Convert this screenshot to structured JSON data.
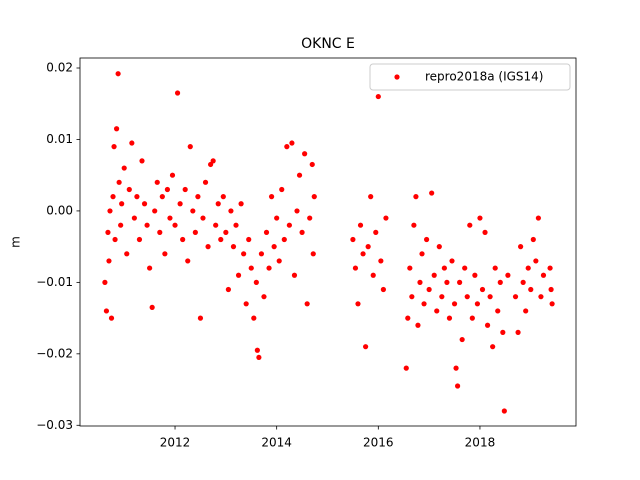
{
  "chart_data": {
    "type": "scatter",
    "title": "OKNC E",
    "ylabel": "m",
    "xlim": [
      2010.13,
      2019.89
    ],
    "xticks": [
      2012,
      2014,
      2016,
      2018
    ],
    "ylim": [
      -0.0301,
      0.0214
    ],
    "yticks": [
      {
        "value": -0.03,
        "label": "−0.03"
      },
      {
        "value": -0.02,
        "label": "−0.02"
      },
      {
        "value": -0.01,
        "label": "−0.01"
      },
      {
        "value": 0,
        "label": "0.00"
      },
      0.01,
      0.02
    ],
    "legend": "upper right",
    "series": [
      {
        "name": "repro2018a (IGS14)",
        "color": "#ff0000",
        "x": [
          2010.62,
          2010.65,
          2010.68,
          2010.7,
          2010.72,
          2010.75,
          2010.78,
          2010.8,
          2010.82,
          2010.85,
          2010.88,
          2010.9,
          2010.93,
          2010.95,
          2011,
          2011.05,
          2011.1,
          2011.15,
          2011.2,
          2011.25,
          2011.3,
          2011.35,
          2011.4,
          2011.45,
          2011.5,
          2011.55,
          2011.6,
          2011.65,
          2011.7,
          2011.75,
          2011.8,
          2011.85,
          2011.9,
          2011.95,
          2012,
          2012.05,
          2012.1,
          2012.15,
          2012.2,
          2012.25,
          2012.3,
          2012.35,
          2012.4,
          2012.45,
          2012.5,
          2012.55,
          2012.6,
          2012.65,
          2012.7,
          2012.75,
          2012.8,
          2012.85,
          2012.9,
          2012.95,
          2013,
          2013.05,
          2013.1,
          2013.15,
          2013.2,
          2013.25,
          2013.3,
          2013.35,
          2013.4,
          2013.45,
          2013.5,
          2013.55,
          2013.6,
          2013.62,
          2013.65,
          2013.7,
          2013.75,
          2013.8,
          2013.85,
          2013.9,
          2013.95,
          2014,
          2014.05,
          2014.1,
          2014.15,
          2014.2,
          2014.25,
          2014.3,
          2014.35,
          2014.4,
          2014.45,
          2014.5,
          2014.55,
          2014.6,
          2014.65,
          2014.7,
          2014.72,
          2014.74,
          2015.5,
          2015.55,
          2015.6,
          2015.65,
          2015.7,
          2015.75,
          2015.8,
          2015.85,
          2015.9,
          2015.95,
          2016,
          2016.05,
          2016.1,
          2016.15,
          2016.55,
          2016.58,
          2016.62,
          2016.66,
          2016.7,
          2016.74,
          2016.78,
          2016.82,
          2016.86,
          2016.9,
          2016.95,
          2017,
          2017.05,
          2017.1,
          2017.15,
          2017.2,
          2017.25,
          2017.3,
          2017.35,
          2017.4,
          2017.45,
          2017.5,
          2017.53,
          2017.56,
          2017.6,
          2017.65,
          2017.7,
          2017.75,
          2017.8,
          2017.85,
          2017.9,
          2017.95,
          2018,
          2018.05,
          2018.1,
          2018.15,
          2018.2,
          2018.25,
          2018.3,
          2018.35,
          2018.4,
          2018.45,
          2018.48,
          2018.55,
          2018.7,
          2018.75,
          2018.8,
          2018.85,
          2018.9,
          2018.95,
          2019,
          2019.05,
          2019.1,
          2019.15,
          2019.2,
          2019.25,
          2019.38,
          2019.4,
          2019.42
        ],
        "values": [
          -0.01,
          -0.014,
          -0.003,
          -0.007,
          0,
          -0.015,
          0.002,
          0.009,
          -0.004,
          0.0115,
          0.0192,
          0.004,
          -0.002,
          0.001,
          0.006,
          -0.006,
          0.003,
          0.0095,
          -0.001,
          0.002,
          -0.004,
          0.007,
          0.001,
          -0.002,
          -0.008,
          -0.0135,
          0,
          0.004,
          -0.003,
          0.002,
          -0.006,
          0.003,
          -0.001,
          0.005,
          -0.002,
          0.0165,
          0.001,
          -0.004,
          0.003,
          -0.007,
          0.009,
          0,
          -0.003,
          0.002,
          -0.015,
          -0.001,
          0.004,
          -0.005,
          0.0065,
          0.007,
          -0.002,
          0.001,
          -0.004,
          0.002,
          -0.003,
          -0.011,
          0,
          -0.005,
          -0.002,
          -0.009,
          0.001,
          -0.006,
          -0.013,
          -0.004,
          -0.008,
          -0.015,
          -0.01,
          -0.0195,
          -0.0205,
          -0.006,
          -0.012,
          -0.003,
          -0.008,
          0.002,
          -0.005,
          -0.001,
          -0.007,
          0.003,
          -0.004,
          0.009,
          -0.002,
          0.0095,
          -0.009,
          0,
          0.005,
          -0.003,
          0.008,
          -0.013,
          -0.001,
          0.0065,
          -0.006,
          0.002,
          -0.004,
          -0.008,
          -0.013,
          -0.002,
          -0.006,
          -0.019,
          -0.005,
          0.002,
          -0.009,
          -0.003,
          0.016,
          -0.007,
          -0.011,
          -0.001,
          -0.022,
          -0.015,
          -0.008,
          -0.012,
          -0.002,
          0.002,
          -0.016,
          -0.01,
          -0.006,
          -0.013,
          -0.004,
          -0.011,
          0.0025,
          -0.009,
          -0.014,
          -0.005,
          -0.012,
          -0.008,
          -0.01,
          -0.015,
          -0.007,
          -0.013,
          -0.022,
          -0.0245,
          -0.01,
          -0.018,
          -0.008,
          -0.012,
          -0.002,
          -0.015,
          -0.009,
          -0.013,
          -0.001,
          -0.011,
          -0.003,
          -0.016,
          -0.012,
          -0.019,
          -0.008,
          -0.014,
          -0.01,
          -0.017,
          -0.028,
          -0.009,
          -0.012,
          -0.017,
          -0.005,
          -0.01,
          -0.014,
          -0.008,
          -0.011,
          -0.004,
          -0.007,
          -0.001,
          -0.012,
          -0.009,
          -0.008,
          -0.011,
          -0.013
        ]
      }
    ]
  }
}
